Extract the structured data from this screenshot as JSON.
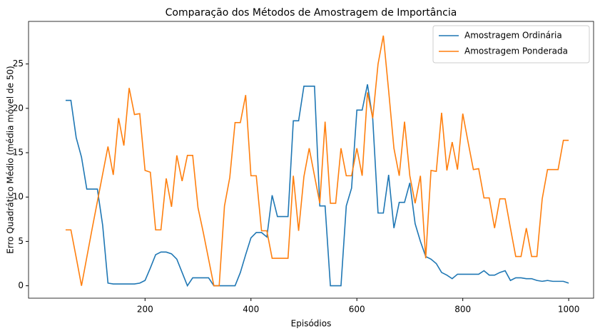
{
  "chart_data": {
    "type": "line",
    "title": "Comparação dos Métodos de Amostragem de Importância",
    "x_label": "Episódios",
    "y_label": "Erro Quadrático Médio (média móvel de 50)",
    "x": [
      50,
      60,
      70,
      80,
      90,
      100,
      110,
      120,
      130,
      140,
      150,
      160,
      170,
      180,
      190,
      200,
      210,
      220,
      230,
      240,
      250,
      260,
      270,
      280,
      290,
      300,
      310,
      320,
      330,
      340,
      350,
      360,
      370,
      380,
      390,
      400,
      410,
      420,
      430,
      440,
      450,
      460,
      470,
      480,
      490,
      500,
      510,
      520,
      530,
      540,
      550,
      560,
      570,
      580,
      590,
      600,
      610,
      620,
      630,
      640,
      650,
      660,
      670,
      680,
      690,
      700,
      710,
      720,
      730,
      740,
      750,
      760,
      770,
      780,
      790,
      800,
      810,
      820,
      830,
      840,
      850,
      860,
      870,
      880,
      890,
      900,
      910,
      920,
      930,
      940,
      950,
      960,
      970,
      980,
      990,
      1000
    ],
    "series": [
      {
        "name": "Amostragem Ordinária",
        "color": "#1f77b4",
        "values": [
          20.9,
          20.9,
          16.7,
          14.5,
          10.9,
          10.9,
          10.9,
          6.8,
          0.3,
          0.2,
          0.2,
          0.2,
          0.2,
          0.2,
          0.3,
          0.6,
          2.0,
          3.5,
          3.8,
          3.8,
          3.6,
          3.0,
          1.5,
          0,
          0.9,
          0.9,
          0.9,
          0.9,
          0,
          0,
          0,
          0,
          0,
          1.5,
          3.5,
          5.4,
          6,
          6,
          5.5,
          10.2,
          7.8,
          7.8,
          7.8,
          18.6,
          18.6,
          22.5,
          22.5,
          22.5,
          9,
          9,
          0,
          0,
          0,
          9,
          11,
          19.8,
          19.8,
          22.7,
          18.8,
          8.2,
          8.2,
          12.5,
          6.5,
          9.4,
          9.4,
          11.6,
          7,
          5,
          3.3,
          3,
          2.5,
          1.5,
          1.2,
          0.8,
          1.3,
          1.3,
          1.3,
          1.3,
          1.3,
          1.7,
          1.2,
          1.2,
          1.5,
          1.7,
          0.6,
          0.9,
          0.9,
          0.8,
          0.8,
          0.6,
          0.5,
          0.6,
          0.5,
          0.5,
          0.5,
          0.3
        ]
      },
      {
        "name": "Amostragem Ponderada",
        "color": "#ff7f0e",
        "values": [
          6.3,
          6.3,
          3.2,
          0,
          3.2,
          6.4,
          9.5,
          12.6,
          15.7,
          12.5,
          18.9,
          15.8,
          22.3,
          19.3,
          19.4,
          13,
          12.8,
          6.3,
          6.3,
          12.1,
          8.9,
          14.7,
          11.8,
          14.7,
          14.7,
          8.8,
          6.0,
          3,
          0,
          0,
          9,
          12.2,
          18.4,
          18.4,
          21.5,
          12.4,
          12.4,
          6.2,
          6.2,
          3.1,
          3.1,
          3.1,
          3.1,
          12.4,
          6.2,
          12.3,
          15.5,
          12.4,
          9.3,
          18.5,
          9.3,
          9.3,
          15.5,
          12.4,
          12.4,
          15.5,
          12.4,
          21.8,
          18.9,
          25,
          28.2,
          22,
          15.5,
          12.4,
          18.5,
          12.4,
          9.3,
          12.4,
          3.1,
          13,
          12.9,
          19.5,
          13,
          16.2,
          13.1,
          19.4,
          16.2,
          13.1,
          13.2,
          9.9,
          9.9,
          6.5,
          9.8,
          9.8,
          6.5,
          3.3,
          3.3,
          6.5,
          3.3,
          3.3,
          9.8,
          13.1,
          13.1,
          13.1,
          16.4,
          16.4
        ]
      }
    ],
    "xlim": [
      -20,
      1047
    ],
    "ylim": [
      -1.4,
      29.8
    ],
    "xticks": [
      200,
      400,
      600,
      800,
      1000
    ],
    "yticks": [
      0,
      5,
      10,
      15,
      20,
      25
    ],
    "legend": "upper right"
  }
}
